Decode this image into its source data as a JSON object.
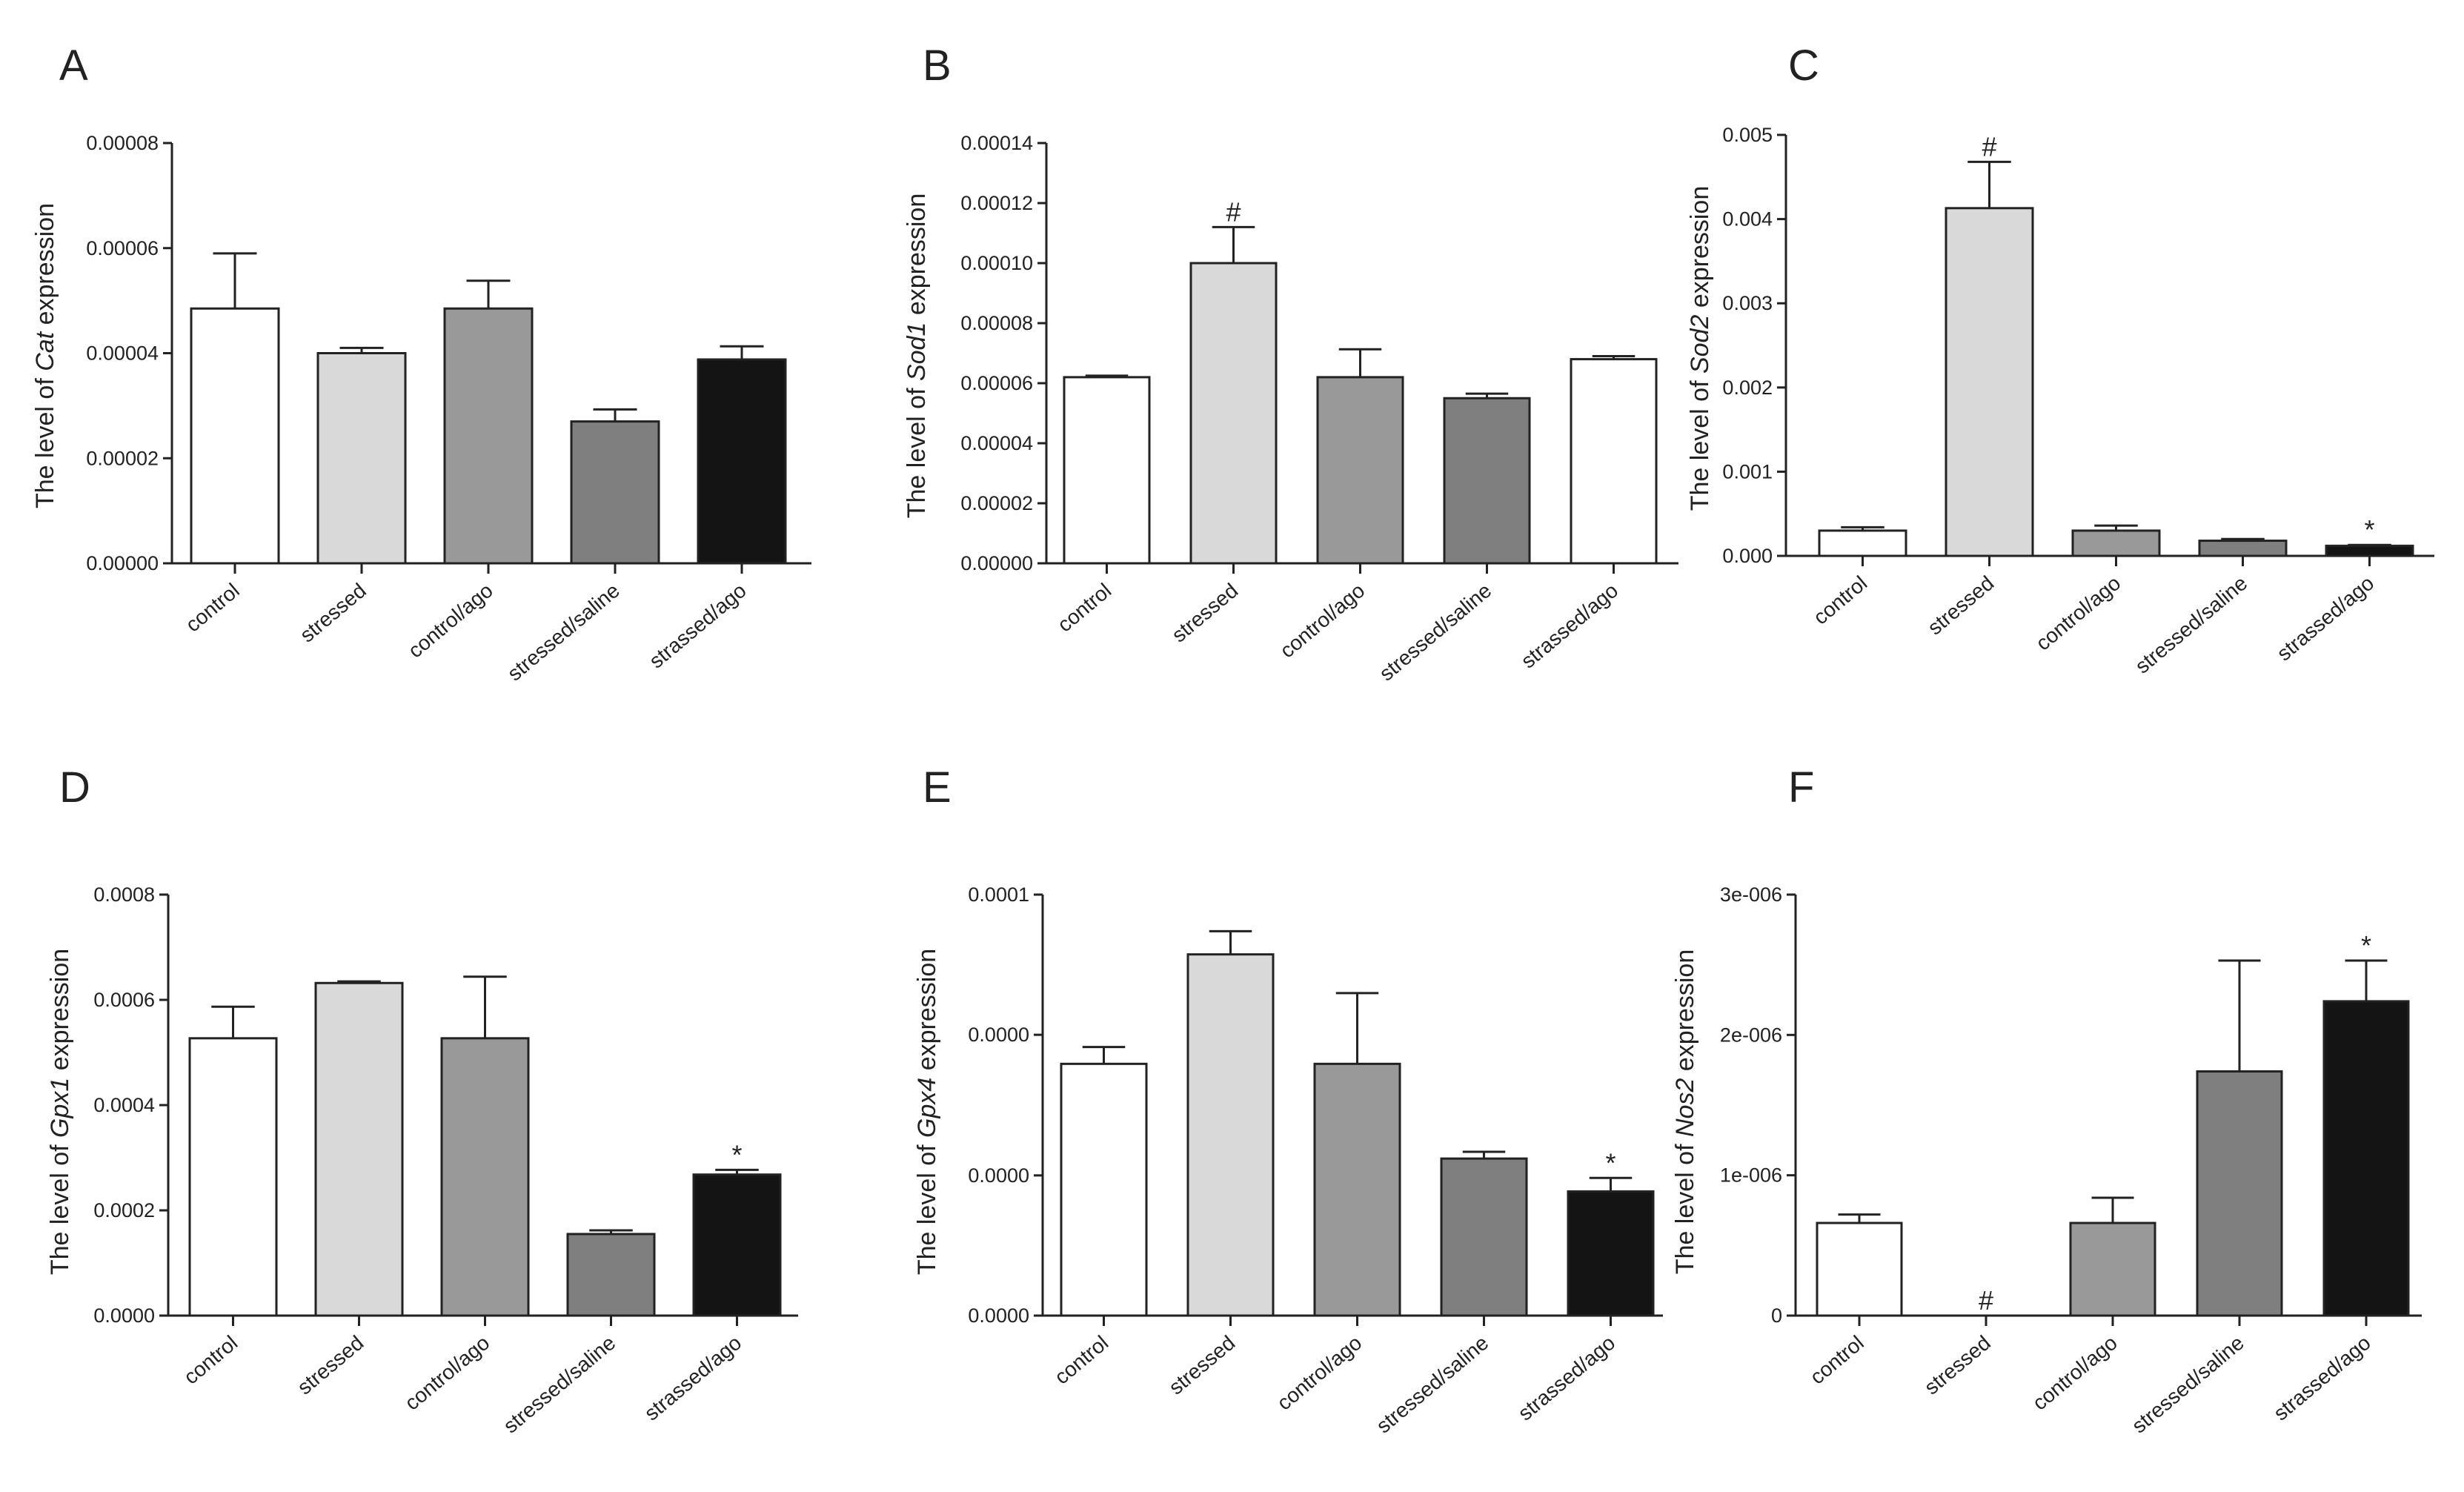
{
  "figure_title": "",
  "chart_data": [
    {
      "panel": "A",
      "type": "bar",
      "ylabel_prefix": "The level of ",
      "gene": "Cat",
      "ylabel_suffix": " expression",
      "categories": [
        "control",
        "stressed",
        "control/ago",
        "stressed/saline",
        "strassed/ago"
      ],
      "values": [
        4.85e-05,
        4e-05,
        4.85e-05,
        2.7e-05,
        3.88e-05
      ],
      "errors": [
        1.05e-05,
        1e-06,
        5.3e-06,
        2.3e-06,
        2.5e-06
      ],
      "colors": [
        "#ffffff",
        "#d9d9d9",
        "#999999",
        "#7f7f7f",
        "#141414"
      ],
      "annotations": [
        "",
        "",
        "",
        "",
        ""
      ],
      "ylim": [
        0,
        8e-05
      ],
      "ticks": [
        0,
        2e-05,
        4e-05,
        6e-05,
        8e-05
      ],
      "tick_labels": [
        "0.00000",
        "0.00002",
        "0.00004",
        "0.00006",
        "0.00008"
      ]
    },
    {
      "panel": "B",
      "type": "bar",
      "ylabel_prefix": "The level of ",
      "gene": "Sod1",
      "ylabel_suffix": " expression",
      "categories": [
        "control",
        "stressed",
        "control/ago",
        "stressed/saline",
        "strassed/ago"
      ],
      "values": [
        6.2e-05,
        0.0001,
        6.2e-05,
        5.5e-05,
        6.8e-05
      ],
      "errors": [
        5e-07,
        1.2e-05,
        9.3e-06,
        1.5e-06,
        1e-06
      ],
      "colors": [
        "#ffffff",
        "#d9d9d9",
        "#999999",
        "#7f7f7f",
        "#ffffff"
      ],
      "annotations": [
        "",
        "#",
        "",
        "",
        ""
      ],
      "ylim": [
        0,
        0.00014
      ],
      "ticks": [
        0,
        2e-05,
        4e-05,
        6e-05,
        8e-05,
        0.0001,
        0.00012,
        0.00014
      ],
      "tick_labels": [
        "0.00000",
        "0.00002",
        "0.00004",
        "0.00006",
        "0.00008",
        "0.00010",
        "0.00012",
        "0.00014"
      ]
    },
    {
      "panel": "C",
      "type": "bar",
      "ylabel_prefix": "The level of ",
      "gene": "Sod2",
      "ylabel_suffix": " expression",
      "categories": [
        "control",
        "stressed",
        "control/ago",
        "stressed/saline",
        "strassed/ago"
      ],
      "values": [
        0.0003,
        0.00413,
        0.0003,
        0.00018,
        0.00012
      ],
      "errors": [
        4e-05,
        0.00055,
        6e-05,
        2e-05,
        1e-05
      ],
      "colors": [
        "#ffffff",
        "#d9d9d9",
        "#999999",
        "#7f7f7f",
        "#141414"
      ],
      "annotations": [
        "",
        "#",
        "",
        "",
        "*"
      ],
      "ylim": [
        0,
        0.005
      ],
      "ticks": [
        0,
        0.001,
        0.002,
        0.003,
        0.004,
        0.005
      ],
      "tick_labels": [
        "0.000",
        "0.001",
        "0.002",
        "0.003",
        "0.004",
        "0.005"
      ]
    },
    {
      "panel": "D",
      "type": "bar",
      "ylabel_prefix": "The level of ",
      "gene": "Gpx1",
      "ylabel_suffix": " expression",
      "categories": [
        "control",
        "stressed",
        "control/ago",
        "stressed/saline",
        "strassed/ago"
      ],
      "values": [
        0.000527,
        0.000632,
        0.000527,
        0.000155,
        0.000268
      ],
      "errors": [
        6e-05,
        3e-06,
        0.000117,
        7e-06,
        9e-06
      ],
      "colors": [
        "#ffffff",
        "#d9d9d9",
        "#999999",
        "#7f7f7f",
        "#141414"
      ],
      "annotations": [
        "",
        "",
        "",
        "",
        "*"
      ],
      "ylim": [
        0,
        0.0008
      ],
      "ticks": [
        0,
        0.0002,
        0.0004,
        0.0006,
        0.0008
      ],
      "tick_labels": [
        "0.0000",
        "0.0002",
        "0.0004",
        "0.0006",
        "0.0008"
      ]
    },
    {
      "panel": "E",
      "type": "bar",
      "ylabel_prefix": "The level of ",
      "gene": "Gpx4",
      "ylabel_suffix": " expression",
      "categories": [
        "control",
        "stressed",
        "control/ago",
        "stressed/saline",
        "strassed/ago"
      ],
      "values": [
        5.98e-05,
        8.58e-05,
        5.98e-05,
        3.73e-05,
        2.95e-05
      ],
      "errors": [
        4e-06,
        5.5e-06,
        1.68e-05,
        1.6e-06,
        3.2e-06
      ],
      "colors": [
        "#ffffff",
        "#d9d9d9",
        "#999999",
        "#7f7f7f",
        "#141414"
      ],
      "annotations": [
        "",
        "",
        "",
        "",
        "*"
      ],
      "ylim": [
        0,
        0.0001
      ],
      "ticks": [
        0,
        3.33e-05,
        6.67e-05,
        0.0001
      ],
      "tick_labels": [
        "0.0000",
        "0.0000",
        "0.0000",
        "0.0001"
      ]
    },
    {
      "panel": "F",
      "type": "bar",
      "ylabel_prefix": "The level of ",
      "gene": "Nos2",
      "ylabel_suffix": " expression",
      "categories": [
        "control",
        "stressed",
        "control/ago",
        "stressed/saline",
        "strassed/ago"
      ],
      "values": [
        6.6e-07,
        0,
        6.6e-07,
        1.74e-06,
        2.24e-06
      ],
      "errors": [
        6e-08,
        0,
        1.8e-07,
        7.9e-07,
        2.9e-07
      ],
      "colors": [
        "#ffffff",
        "#d9d9d9",
        "#999999",
        "#7f7f7f",
        "#141414"
      ],
      "annotations": [
        "",
        "#",
        "",
        "",
        "*"
      ],
      "ylim": [
        0,
        3e-06
      ],
      "ticks": [
        0,
        1e-06,
        2e-06,
        3e-06
      ],
      "tick_labels": [
        "0",
        "1e-006",
        "2e-006",
        "3e-006"
      ]
    }
  ]
}
